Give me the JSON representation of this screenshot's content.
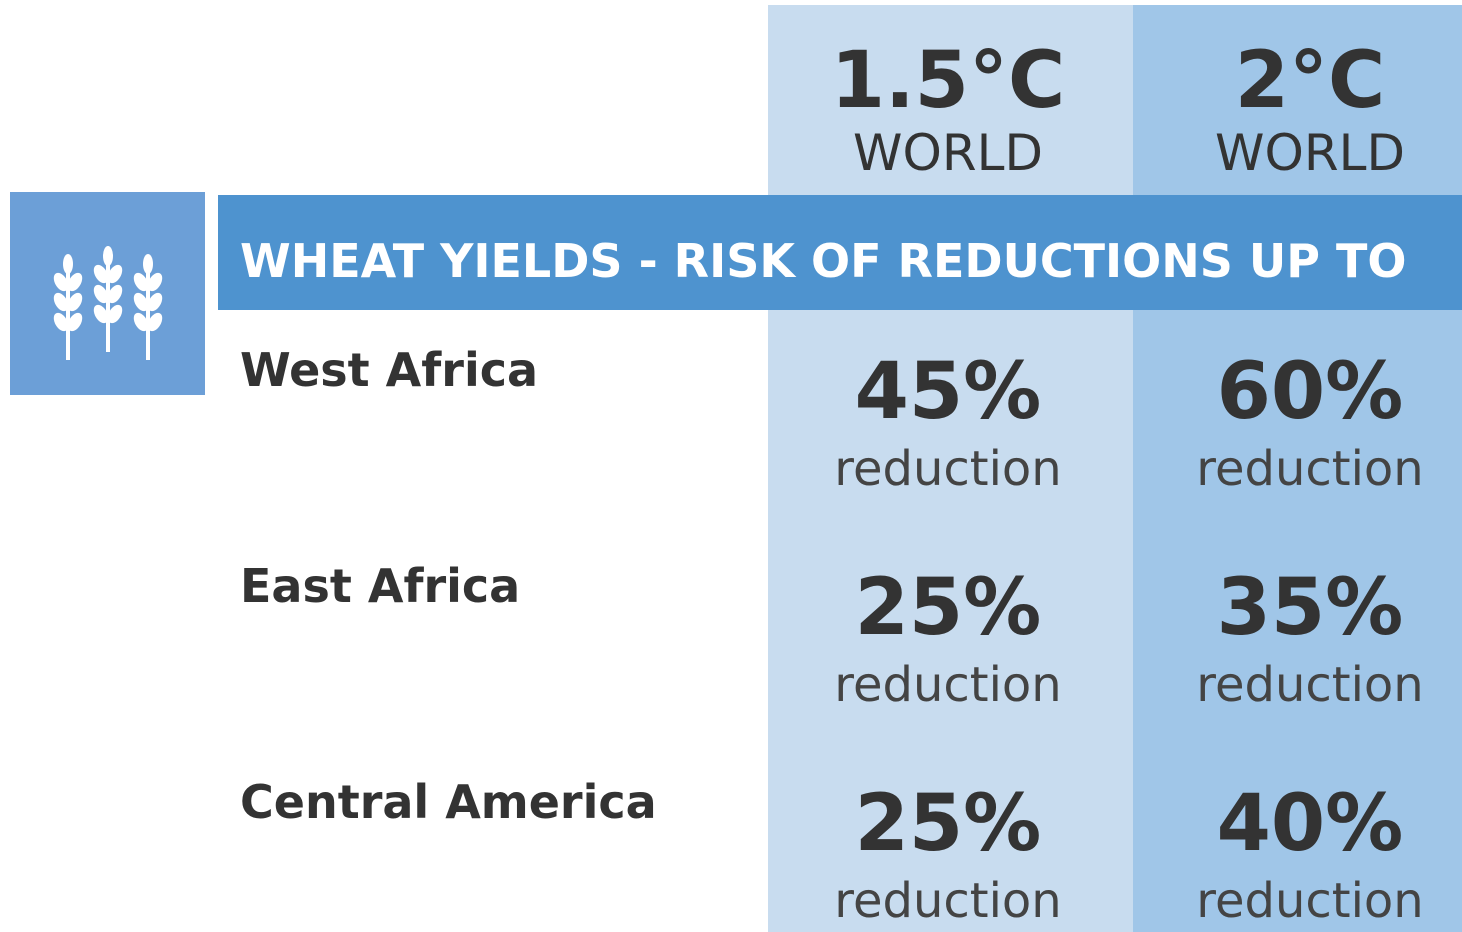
{
  "columns": [
    {
      "title": "1.5°C",
      "subtitle": "WORLD"
    },
    {
      "title": "2°C",
      "subtitle": "WORLD"
    }
  ],
  "banner": "WHEAT YIELDS - RISK OF REDUCTIONS UP TO",
  "rows": [
    {
      "region": "West Africa",
      "cells": [
        {
          "value": "45%",
          "unit": "reduction"
        },
        {
          "value": "60%",
          "unit": "reduction"
        }
      ]
    },
    {
      "region": "East Africa",
      "cells": [
        {
          "value": "25%",
          "unit": "reduction"
        },
        {
          "value": "35%",
          "unit": "reduction"
        }
      ]
    },
    {
      "region": "Central America",
      "cells": [
        {
          "value": "25%",
          "unit": "reduction"
        },
        {
          "value": "40%",
          "unit": "reduction"
        }
      ]
    }
  ]
}
